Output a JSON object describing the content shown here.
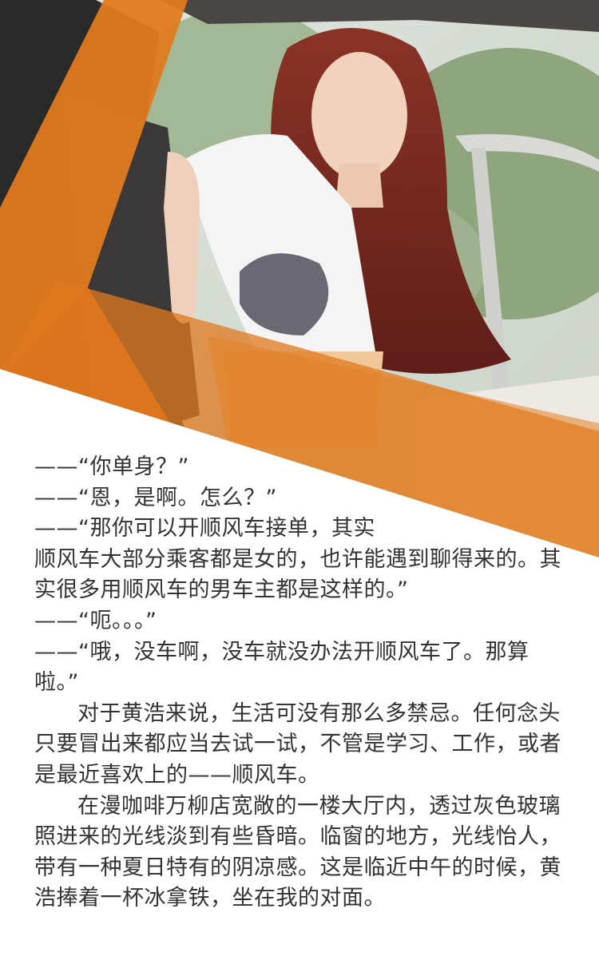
{
  "hero": {
    "photo": "woman-with-long-reddish-hair-leaning-into-car-door",
    "colors": {
      "accent": "#e07a1f",
      "accent_dark": "#c9651a",
      "seat": "#a85a1c",
      "sky": "#e7ecef",
      "trees": "#8aa57a",
      "hair": "#7a2a22",
      "shirt": "#f2f2f2"
    }
  },
  "article": {
    "dialogue": [
      "——“你单身？”",
      "——“恩，是啊。怎么？”",
      "——“那你可以开顺风车接单，其实",
      "顺风车大部分乘客都是女的，也许能遇到聊得来的。其实很多用顺风车的男车主都是这样的。”",
      "——“呃。。。”",
      "——“哦，没车啊，没车就没办法开顺风车了。那算啦。”"
    ],
    "paragraphs": [
      "对于黄浩来说，生活可没有那么多禁忌。任何念头只要冒出来都应当去试一试，不管是学习、工作，或者是最近喜欢上的——顺风车。",
      "在漫咖啡万柳店宽敞的一楼大厅内，透过灰色玻璃照进来的光线淡到有些昏暗。临窗的地方，光线怡人，带有一种夏日特有的阴凉感。这是临近中午的时候，黄浩捧着一杯冰拿铁，坐在我的对面。"
    ]
  }
}
